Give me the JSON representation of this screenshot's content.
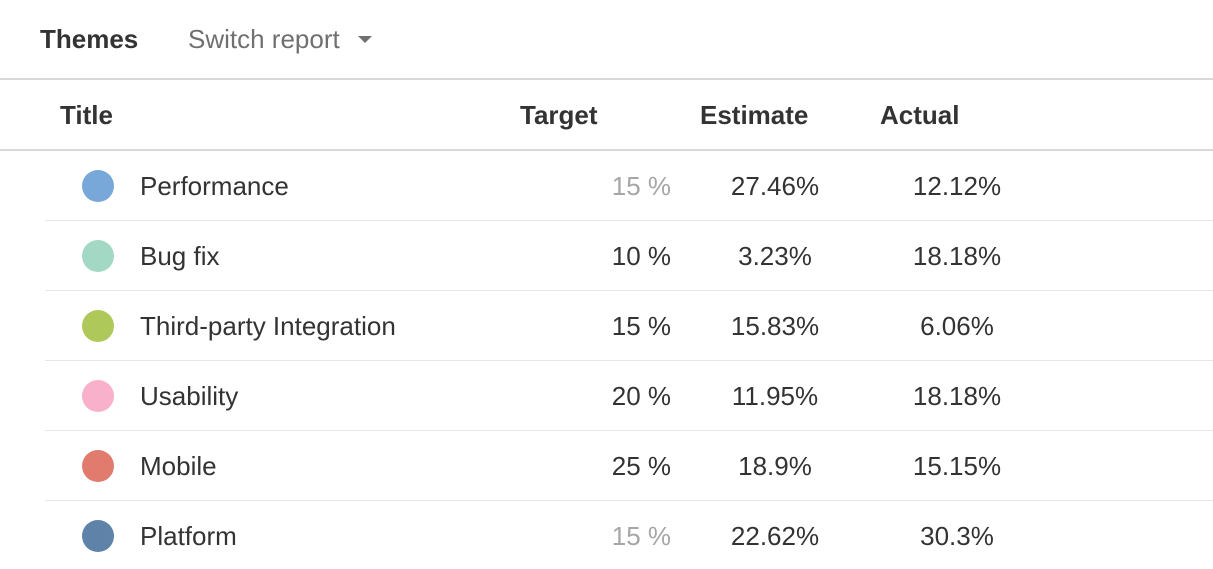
{
  "header": {
    "title": "Themes",
    "switch_label": "Switch report",
    "switch_icon": "caret-down-icon"
  },
  "table": {
    "columns": [
      "Title",
      "Target",
      "Estimate",
      "Actual"
    ],
    "rows": [
      {
        "title": "Performance",
        "color": "#78a7da",
        "target": "15 %",
        "target_muted": true,
        "estimate": "27.46%",
        "actual": "12.12%"
      },
      {
        "title": "Bug fix",
        "color": "#a3d8c4",
        "target": "10 %",
        "target_muted": false,
        "estimate": "3.23%",
        "actual": "18.18%"
      },
      {
        "title": "Third-party Integration",
        "color": "#afc85a",
        "target": "15 %",
        "target_muted": false,
        "estimate": "15.83%",
        "actual": "6.06%"
      },
      {
        "title": "Usability",
        "color": "#f9b1cb",
        "target": "20 %",
        "target_muted": false,
        "estimate": "11.95%",
        "actual": "18.18%"
      },
      {
        "title": "Mobile",
        "color": "#e07b6e",
        "target": "25 %",
        "target_muted": false,
        "estimate": "18.9%",
        "actual": "15.15%"
      },
      {
        "title": "Platform",
        "color": "#5e82a8",
        "target": "15 %",
        "target_muted": true,
        "estimate": "22.62%",
        "actual": "30.3%"
      }
    ]
  }
}
